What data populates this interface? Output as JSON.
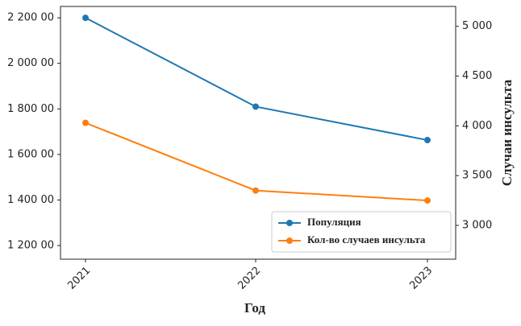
{
  "chart_data": {
    "type": "line",
    "categories": [
      "2021",
      "2022",
      "2023"
    ],
    "xlabel": "Год",
    "y2label": "Случаи инсульта",
    "ylim": [
      114000,
      225000
    ],
    "yticks": [
      {
        "value": 120000,
        "label": "1 200 00"
      },
      {
        "value": 140000,
        "label": "1 400 00"
      },
      {
        "value": 160000,
        "label": "1 600 00"
      },
      {
        "value": 180000,
        "label": "1 800 00"
      },
      {
        "value": 200000,
        "label": "2 000 00"
      },
      {
        "value": 220000,
        "label": "2 200 00"
      }
    ],
    "y2lim": [
      2660,
      5200
    ],
    "y2ticks": [
      {
        "value": 3000,
        "label": "3 000"
      },
      {
        "value": 3500,
        "label": "3 500"
      },
      {
        "value": 4000,
        "label": "4 000"
      },
      {
        "value": 4500,
        "label": "4 500"
      },
      {
        "value": 5000,
        "label": "5 000"
      }
    ],
    "legend": "lower right",
    "series": [
      {
        "name": "Популяция",
        "color": "#1f77b4",
        "values": [
          220000,
          181000,
          166300
        ]
      },
      {
        "name": "Кол-во случаев инсульта",
        "color": "#ff7f0e",
        "axis": "y2",
        "values": [
          4030,
          3350,
          3250
        ]
      }
    ]
  }
}
